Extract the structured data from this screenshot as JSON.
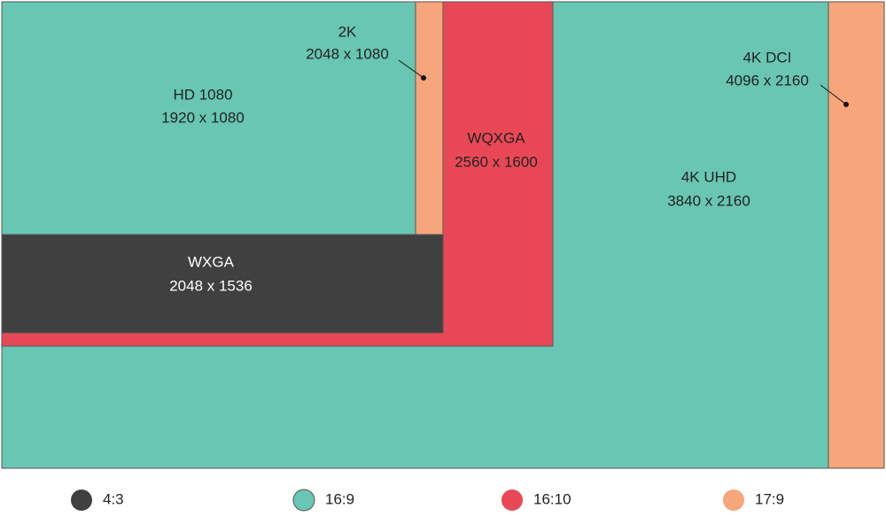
{
  "nodes": [
    {
      "label": "4K DCI",
      "resolution": "4096 x 2160"
    },
    {
      "label": "4K UHD",
      "resolution": "3840 x 2160"
    },
    {
      "label": "WQXGA",
      "resolution": "2560 x 1600"
    },
    {
      "label": "2K",
      "resolution": "2048 x 1080"
    },
    {
      "label": "HD 1080",
      "resolution": "1920 x 1080"
    },
    {
      "label": "WXGA",
      "resolution": "2048 x 1536"
    }
  ],
  "legend": [
    {
      "label": "4:3"
    },
    {
      "label": "16:9"
    },
    {
      "label": "16:10"
    },
    {
      "label": "17:9"
    }
  ]
}
